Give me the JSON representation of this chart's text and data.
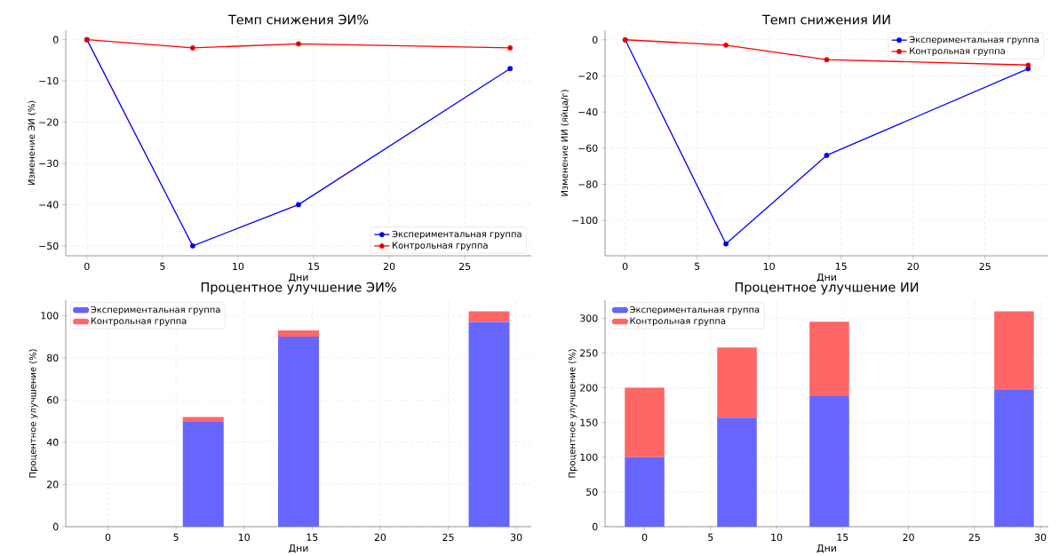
{
  "chart_data": [
    {
      "type": "line",
      "title": "Темп снижения ЭИ%",
      "xlabel": "Дни",
      "ylabel": "Изменение ЭИ (%)",
      "x": [
        0,
        7,
        14,
        28
      ],
      "marker": "circle",
      "line_style": "solid",
      "grid": true,
      "legend": "bottom right",
      "series": [
        {
          "name": "Экспериментальная группа",
          "color": "#0000ff",
          "values": [
            0,
            -50,
            -40,
            -7
          ]
        },
        {
          "name": "Контрольная группа",
          "color": "#ff0000",
          "values": [
            0,
            -2,
            -1,
            -2
          ]
        }
      ],
      "xlim": [
        -1.4,
        29.4
      ],
      "ylim": [
        -52.4,
        2.3
      ],
      "xticks": [
        0,
        5,
        10,
        15,
        20,
        25
      ],
      "yticks": [
        {
          "value": -50,
          "label": "−50"
        },
        {
          "value": -40,
          "label": "−40"
        },
        {
          "value": -30,
          "label": "−30"
        },
        {
          "value": -20,
          "label": "−20"
        },
        {
          "value": -10,
          "label": "−10"
        },
        0
      ]
    },
    {
      "type": "line",
      "title": "Темп снижения ИИ",
      "xlabel": "Дни",
      "ylabel": "Изменение ИИ (яйца/г)",
      "x": [
        0,
        7,
        14,
        28
      ],
      "marker": "circle",
      "line_style": "solid",
      "grid": true,
      "legend": "top right",
      "series": [
        {
          "name": "Экспериментальная группа",
          "color": "#0000ff",
          "values": [
            0,
            -113,
            -64,
            -16
          ]
        },
        {
          "name": "Контрольная группа",
          "color": "#ff0000",
          "values": [
            0,
            -3,
            -11,
            -14
          ]
        }
      ],
      "xlim": [
        -1.4,
        29.4
      ],
      "ylim": [
        -119.6,
        5.3
      ],
      "xticks": [
        0,
        5,
        10,
        15,
        20,
        25
      ],
      "yticks": [
        {
          "value": -100,
          "label": "−100"
        },
        {
          "value": -80,
          "label": "−80"
        },
        {
          "value": -60,
          "label": "−60"
        },
        {
          "value": -40,
          "label": "−40"
        },
        {
          "value": -20,
          "label": "−20"
        },
        0
      ]
    },
    {
      "type": "bar",
      "stacked": true,
      "title": "Процентное улучшение ЭИ%",
      "xlabel": "Дни",
      "ylabel": "Процентное улучшение (%)",
      "x": [
        0,
        7,
        14,
        28
      ],
      "grid": true,
      "legend": "top left",
      "series": [
        {
          "name": "Экспериментальная группа",
          "color": "#6666ff",
          "values": [
            0,
            50,
            90,
            97
          ]
        },
        {
          "name": "Контрольная группа",
          "color": "#ff6666",
          "values": [
            0,
            2,
            3,
            5
          ]
        }
      ],
      "xlim": [
        -3.1,
        31.1
      ],
      "ylim": [
        0,
        107.3
      ],
      "xticks": [
        0,
        5,
        10,
        15,
        20,
        25,
        30
      ],
      "yticks": [
        0,
        20,
        40,
        60,
        80,
        100
      ]
    },
    {
      "type": "bar",
      "stacked": true,
      "title": "Процентное улучшение ИИ",
      "xlabel": "Дни",
      "ylabel": "Процентное улучшение (%)",
      "x": [
        0,
        7,
        14,
        28
      ],
      "grid": true,
      "legend": "top left",
      "series": [
        {
          "name": "Экспериментальная группа",
          "color": "#6666ff",
          "values": [
            100,
            157,
            188,
            197
          ]
        },
        {
          "name": "Контрольная группа",
          "color": "#ff6666",
          "values": [
            100,
            101,
            107,
            113
          ]
        }
      ],
      "xlim": [
        -3,
        30.6
      ],
      "ylim": [
        0,
        326
      ],
      "xticks": [
        0,
        5,
        10,
        15,
        20,
        25,
        30
      ],
      "yticks": [
        0,
        50,
        100,
        150,
        200,
        250,
        300
      ]
    }
  ]
}
